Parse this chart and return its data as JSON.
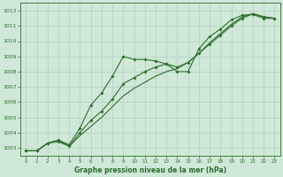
{
  "title": "Graphe pression niveau de la mer (hPa)",
  "bg_color": "#cfe8d8",
  "grid_color": "#b0d4be",
  "line_color": "#2d6e2d",
  "xlim": [
    -0.5,
    23.5
  ],
  "ylim": [
    1002.5,
    1012.5
  ],
  "xticks": [
    0,
    1,
    2,
    3,
    4,
    5,
    6,
    7,
    8,
    9,
    10,
    11,
    12,
    13,
    14,
    15,
    16,
    17,
    18,
    19,
    20,
    21,
    22,
    23
  ],
  "yticks": [
    1003,
    1004,
    1005,
    1006,
    1007,
    1008,
    1009,
    1010,
    1011,
    1012
  ],
  "series1_x": [
    0,
    1,
    2,
    3,
    4,
    5,
    6,
    7,
    8,
    9,
    10,
    11,
    12,
    13,
    14,
    15,
    16,
    17,
    18,
    19,
    20,
    21,
    22,
    23
  ],
  "series1_y": [
    1002.8,
    1002.8,
    1003.3,
    1003.5,
    1003.2,
    1004.3,
    1005.8,
    1006.6,
    1007.7,
    1009.0,
    1008.8,
    1008.8,
    1008.7,
    1008.5,
    1008.0,
    1008.0,
    1009.5,
    1010.3,
    1010.8,
    1011.4,
    1011.7,
    1011.75,
    1011.5,
    1011.5
  ],
  "series2_x": [
    0,
    1,
    2,
    3,
    4,
    5,
    6,
    7,
    8,
    9,
    10,
    11,
    12,
    13,
    14,
    15,
    16,
    17,
    18,
    19,
    20,
    21,
    22,
    23
  ],
  "series2_y": [
    1002.8,
    1002.8,
    1003.3,
    1003.4,
    1003.1,
    1004.0,
    1004.8,
    1005.4,
    1006.2,
    1007.2,
    1007.6,
    1008.0,
    1008.3,
    1008.5,
    1008.3,
    1008.6,
    1009.2,
    1009.8,
    1010.4,
    1011.0,
    1011.5,
    1011.8,
    1011.6,
    1011.5
  ],
  "series3_x": [
    0,
    1,
    2,
    3,
    4,
    5,
    6,
    7,
    8,
    9,
    10,
    11,
    12,
    13,
    14,
    15,
    16,
    17,
    18,
    19,
    20,
    21,
    22,
    23
  ],
  "series3_y": [
    1002.8,
    1002.8,
    1003.3,
    1003.5,
    1003.1,
    1003.8,
    1004.4,
    1005.0,
    1005.7,
    1006.4,
    1006.9,
    1007.3,
    1007.7,
    1008.0,
    1008.2,
    1008.6,
    1009.2,
    1009.9,
    1010.5,
    1011.1,
    1011.6,
    1011.8,
    1011.6,
    1011.5
  ]
}
